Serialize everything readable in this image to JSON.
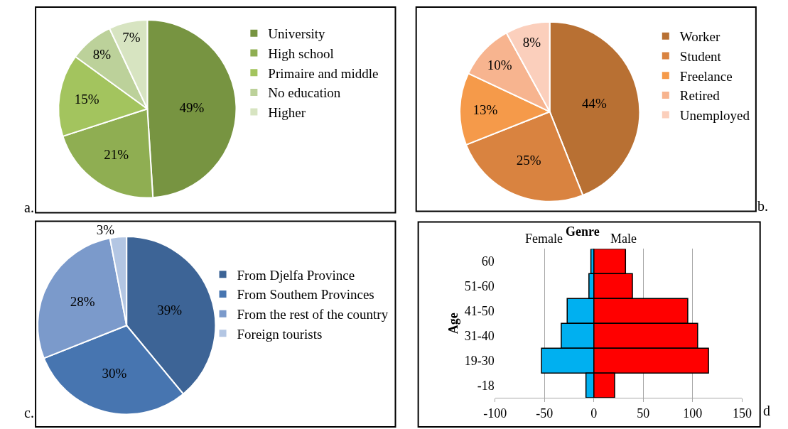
{
  "chart_data": [
    {
      "type": "pie",
      "categories": [
        "University",
        "High school",
        "Primaire and middle",
        "No education",
        "Higher"
      ],
      "values": [
        49,
        21,
        15,
        8,
        7
      ],
      "colors": [
        "#779441",
        "#8fae52",
        "#a3c45e",
        "#bcd19a",
        "#d7e4c1"
      ],
      "value_labels": [
        "49%",
        "21%",
        "15%",
        "8%",
        "7%"
      ],
      "legend": "right",
      "annotations": [
        "a."
      ]
    },
    {
      "type": "pie",
      "categories": [
        "Worker",
        "Student",
        "Freelance",
        "Retired",
        "Unemployed"
      ],
      "values": [
        44,
        25,
        13,
        10,
        8
      ],
      "colors": [
        "#b87033",
        "#d98340",
        "#f59a4a",
        "#f7b48f",
        "#fbcfbc"
      ],
      "value_labels": [
        "44%",
        "25%",
        "13%",
        "10%",
        "8%"
      ],
      "legend": "right",
      "annotations": [
        "b."
      ]
    },
    {
      "type": "pie",
      "categories": [
        "From Djelfa Province",
        "From Southem Provinces",
        "From the rest of the country",
        "Foreign tourists"
      ],
      "values": [
        39,
        30,
        28,
        3
      ],
      "colors": [
        "#3d6496",
        "#4775b0",
        "#7b9acb",
        "#b3c6e3"
      ],
      "value_labels": [
        "39%",
        "30%",
        "28%",
        "3%"
      ],
      "legend": "right",
      "annotations": [
        "c."
      ]
    },
    {
      "type": "bar",
      "orientation": "horizontal",
      "stacked": true,
      "title": "Genre",
      "ylabel": "Age",
      "categories": [
        "60",
        "51-60",
        "41-50",
        "31-40",
        "19-30",
        "-18"
      ],
      "series": [
        {
          "name": "Female",
          "color": "#00b0f0",
          "values": [
            -3,
            -5,
            -27,
            -33,
            -53,
            -8
          ]
        },
        {
          "name": "Male",
          "color": "#ff0000",
          "values": [
            32,
            39,
            95,
            105,
            116,
            21
          ]
        }
      ],
      "xlim": [
        -100,
        150
      ],
      "xticks": [
        -100,
        -50,
        0,
        50,
        100,
        150
      ],
      "grid": "x",
      "annotations": [
        "d"
      ]
    }
  ]
}
